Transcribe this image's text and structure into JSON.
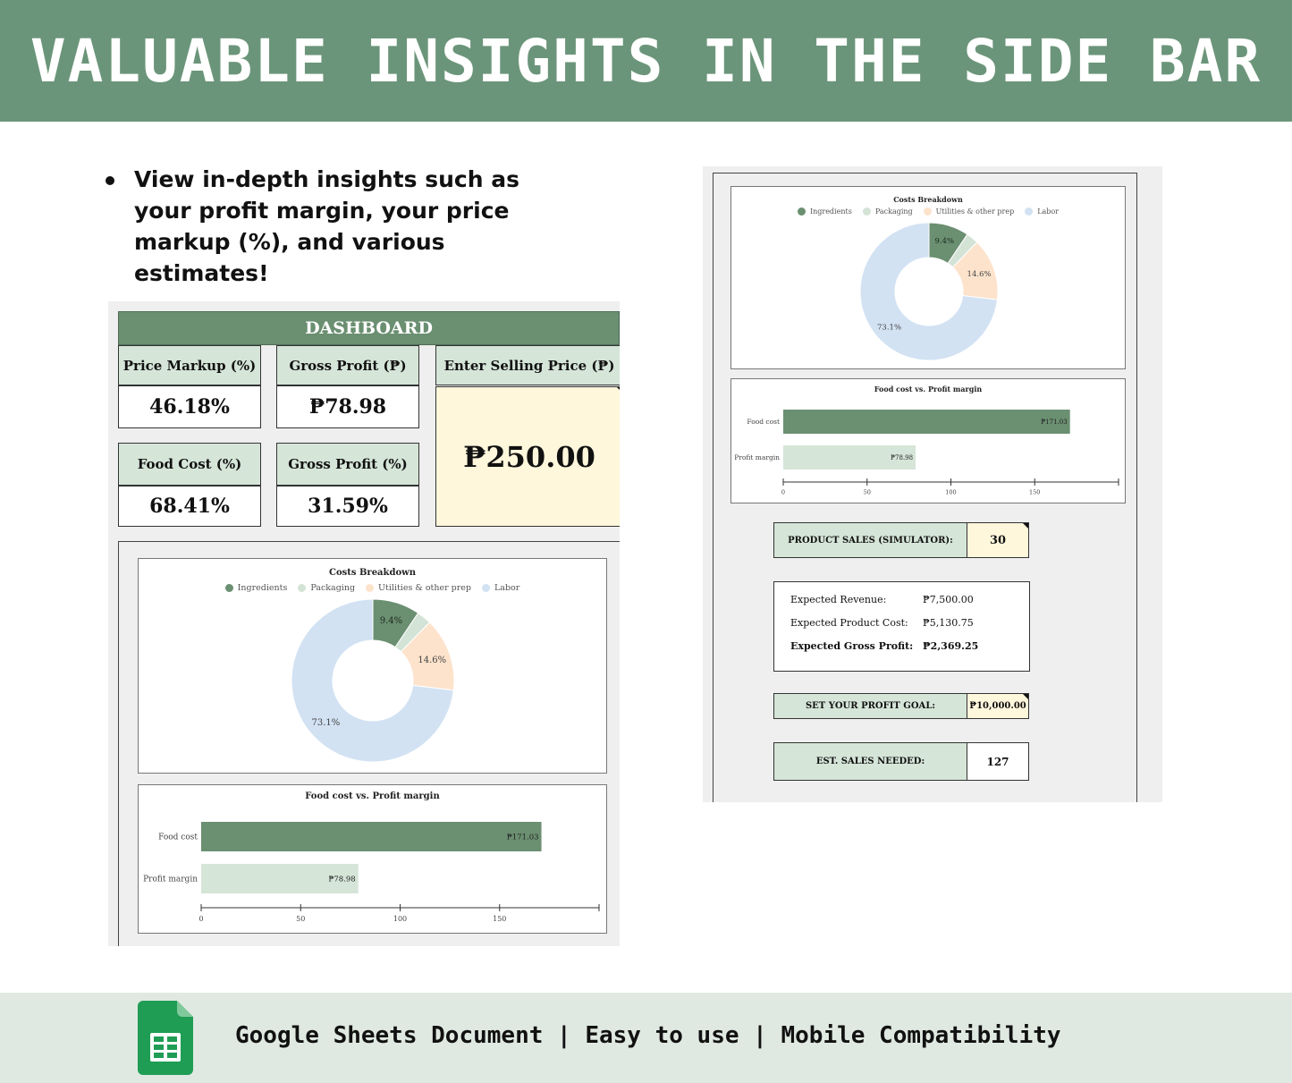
{
  "banner": {
    "title": "VALUABLE INSIGHTS IN THE SIDE BAR"
  },
  "bullet": {
    "text": "View in-depth insights such as your profit margin, your price markup (%), and various estimates!"
  },
  "dashboard": {
    "title": "DASHBOARD",
    "price_markup_label": "Price Markup (%)",
    "price_markup_value": "46.18%",
    "gross_profit_label": "Gross Profit (₱)",
    "gross_profit_value": "₱78.98",
    "selling_price_label": "Enter Selling Price (₱)",
    "selling_price_value": "₱250.00",
    "food_cost_label": "Food Cost (%)",
    "food_cost_value": "68.41%",
    "gross_profit_pct_label": "Gross Profit (%)",
    "gross_profit_pct_value": "31.59%"
  },
  "colors": {
    "ingredients": "#6b8f71",
    "packaging": "#d3e3d6",
    "utilities": "#fde3cc",
    "labor": "#d2e2f3",
    "food_bar": "#6b8f71",
    "profit_bar": "#d5e5d8",
    "banner": "#6b957a"
  },
  "chart_data": [
    {
      "type": "pie",
      "title": "Costs Breakdown",
      "labels": [
        "Ingredients",
        "Packaging",
        "Utilities & other prep",
        "Labor"
      ],
      "values": [
        9.4,
        2.9,
        14.6,
        73.1
      ],
      "slice_labels": [
        "9.4%",
        "",
        "14.6%",
        "73.1%"
      ],
      "legend": "top"
    },
    {
      "type": "bar",
      "orientation": "horizontal",
      "title": "Food cost vs. Profit margin",
      "categories": [
        "Food cost",
        "Profit margin"
      ],
      "values": [
        171.03,
        78.98
      ],
      "value_labels": [
        "₱171.03",
        "₱78.98"
      ],
      "xlim": [
        0,
        200
      ],
      "ticks": [
        "0",
        "50",
        "100",
        "150"
      ]
    }
  ],
  "simulator": {
    "product_sales_label": "PRODUCT SALES (SIMULATOR):",
    "product_sales_value": "30",
    "expected_revenue_label": "Expected Revenue:",
    "expected_revenue_value": "₱7,500.00",
    "expected_cost_label": "Expected Product Cost:",
    "expected_cost_value": "₱5,130.75",
    "expected_profit_label": "Expected Gross Profit:",
    "expected_profit_value": "₱2,369.25",
    "profit_goal_label": "SET YOUR PROFIT GOAL:",
    "profit_goal_value": "₱10,000.00",
    "sales_needed_label": "EST. SALES NEEDED:",
    "sales_needed_value": "127"
  },
  "footer": {
    "text": "Google Sheets Document | Easy to use | Mobile Compatibility",
    "icon": "google-sheets-icon"
  }
}
